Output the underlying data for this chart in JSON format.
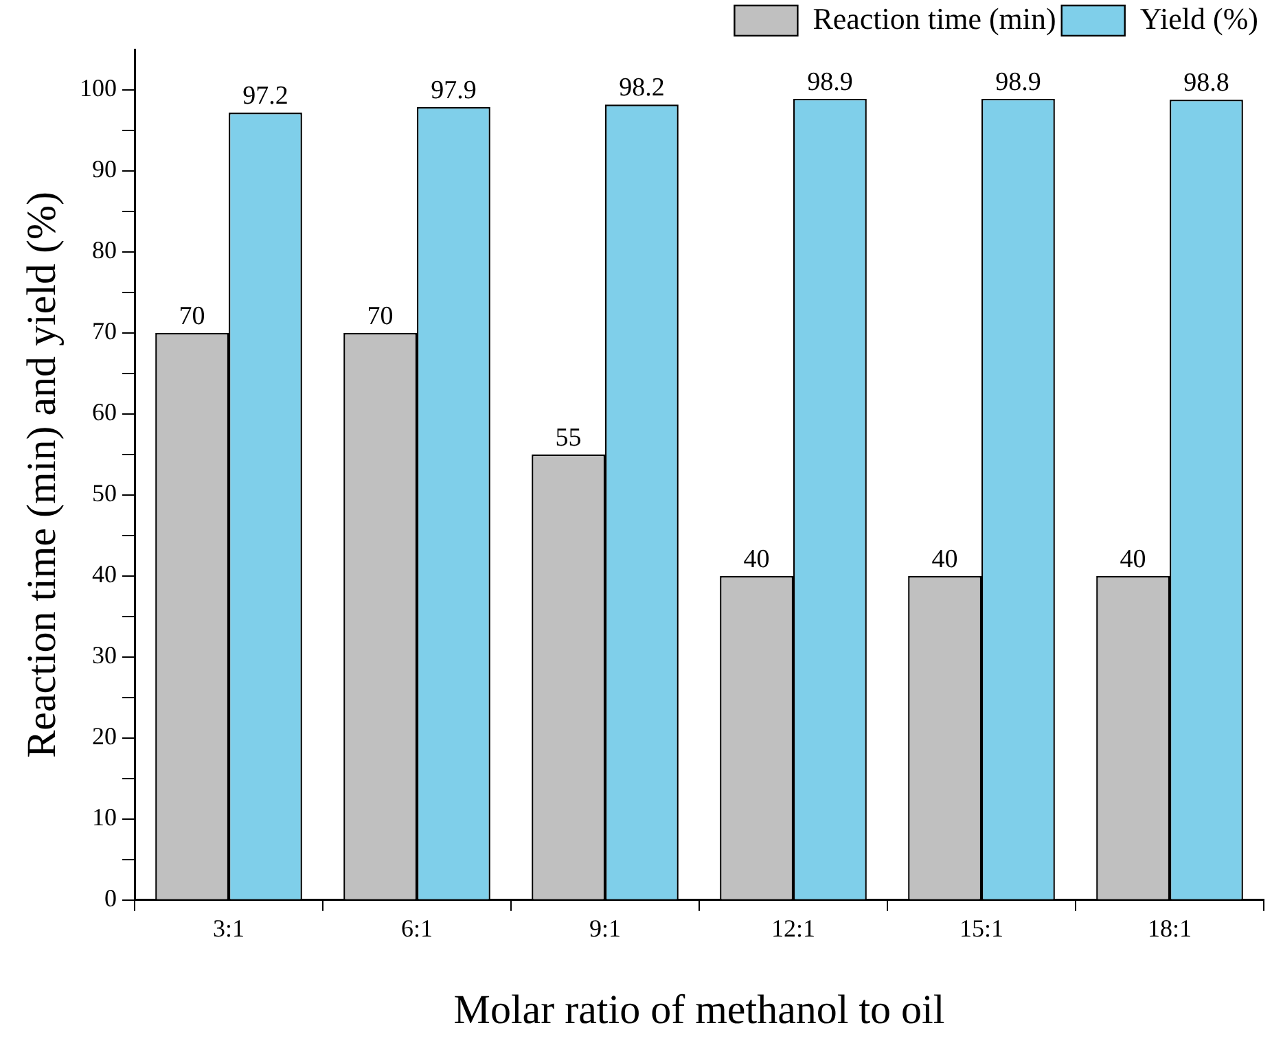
{
  "chart_data": {
    "type": "bar",
    "xlabel": "Molar ratio of methanol to oil",
    "ylabel": "Reaction time (min) and yield (%)",
    "categories": [
      "3:1",
      "6:1",
      "9:1",
      "12:1",
      "15:1",
      "18:1"
    ],
    "series": [
      {
        "name": "Reaction time (min)",
        "color": "#c0c0c0",
        "values": [
          70,
          70,
          55,
          40,
          40,
          40
        ]
      },
      {
        "name": "Yield (%)",
        "color": "#7fcfea",
        "values": [
          97.2,
          97.9,
          98.2,
          98.9,
          98.9,
          98.8
        ]
      }
    ],
    "ylim": [
      0,
      105
    ],
    "yticks": [
      0,
      {
        "value": 5,
        "label": null
      },
      10,
      {
        "value": 15,
        "label": null
      },
      20,
      {
        "value": 25,
        "label": null
      },
      30,
      {
        "value": 35,
        "label": null
      },
      40,
      {
        "value": 45,
        "label": null
      },
      50,
      {
        "value": 55,
        "label": null
      },
      60,
      {
        "value": 65,
        "label": null
      },
      70,
      {
        "value": 75,
        "label": null
      },
      80,
      {
        "value": 85,
        "label": null
      },
      90,
      {
        "value": 95,
        "label": null
      },
      100
    ],
    "data_labels": true,
    "legend": "top right",
    "grid": false
  }
}
